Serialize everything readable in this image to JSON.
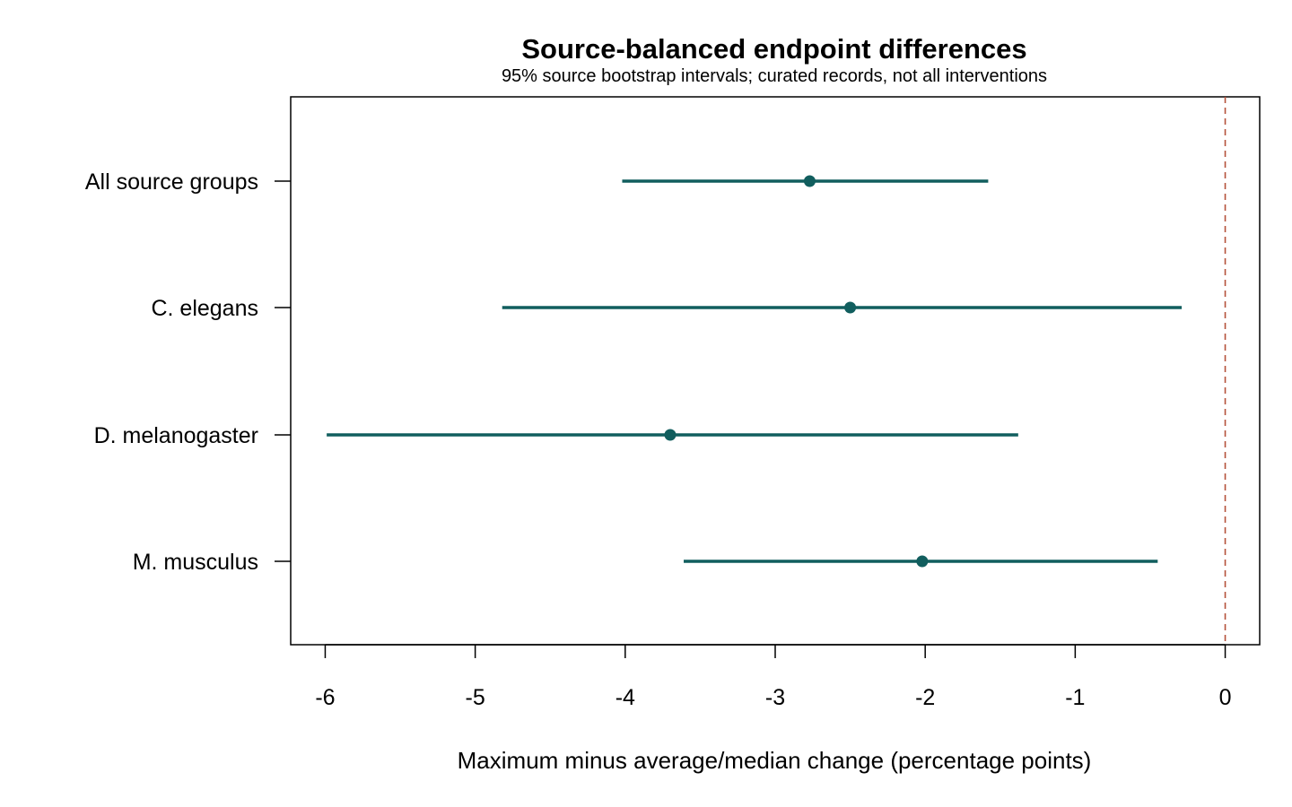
{
  "chart_data": {
    "type": "forest",
    "title": "Source-balanced endpoint differences",
    "subtitle": "95% source bootstrap intervals; curated records, not all interventions",
    "xlabel": "Maximum minus average/median change (percentage points)",
    "ylabel": "",
    "xlim": [
      -6.23,
      0.23
    ],
    "x_ticks": [
      -6,
      -5,
      -4,
      -3,
      -2,
      -1,
      0
    ],
    "reference_line": 0,
    "grid": false,
    "categories": [
      "All source groups",
      "C. elegans",
      "D. melanogaster",
      "M. musculus"
    ],
    "estimates": [
      -2.77,
      -2.5,
      -3.7,
      -2.02
    ],
    "ci_lower": [
      -4.02,
      -4.82,
      -5.99,
      -3.61
    ],
    "ci_upper": [
      -1.58,
      -0.29,
      -1.38,
      -0.45
    ],
    "colors": {
      "estimate": "#115e5e",
      "reference_line": "#b5523b",
      "axis": "#000000"
    }
  }
}
